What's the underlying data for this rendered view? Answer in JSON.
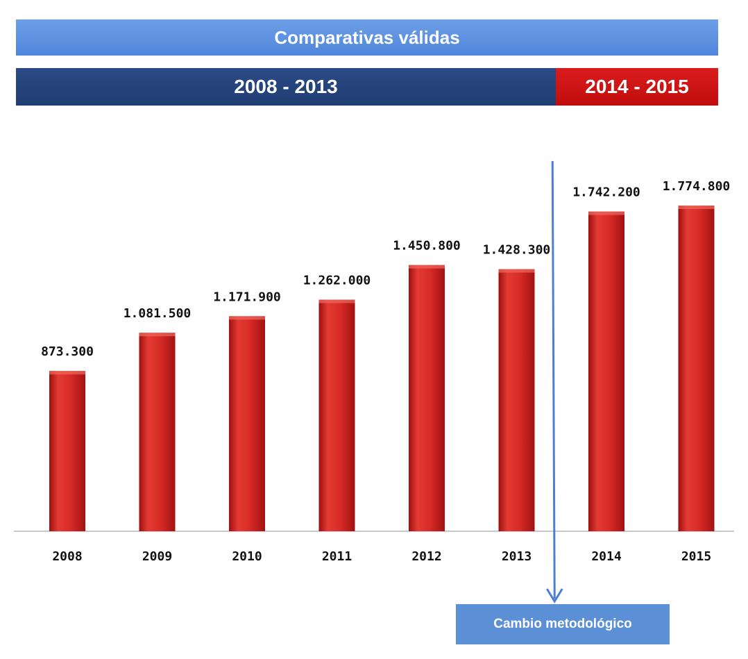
{
  "header": {
    "title": "Comparativas válidas",
    "period_old": "2008 - 2013",
    "period_new": "2014 - 2015"
  },
  "annotation": {
    "label": "Cambio metodológico"
  },
  "colors": {
    "banner": "#5b8fdf",
    "period_old": "#233f78",
    "period_new": "#c81414",
    "bar": "#d52525",
    "annotation": "#5b8fd6"
  },
  "chart_data": {
    "type": "bar",
    "categories": [
      "2008",
      "2009",
      "2010",
      "2011",
      "2012",
      "2013",
      "2014",
      "2015"
    ],
    "values": [
      873300,
      1081500,
      1171900,
      1262000,
      1450800,
      1428300,
      1742200,
      1774800
    ],
    "value_labels": [
      "873.300",
      "1.081.500",
      "1.171.900",
      "1.262.000",
      "1.450.800",
      "1.428.300",
      "1.742.200",
      "1.774.800"
    ],
    "title": "",
    "xlabel": "",
    "ylabel": "",
    "ylim": [
      0,
      1774800
    ],
    "grid": false,
    "legend": "none",
    "divider_after_category": "2013"
  }
}
